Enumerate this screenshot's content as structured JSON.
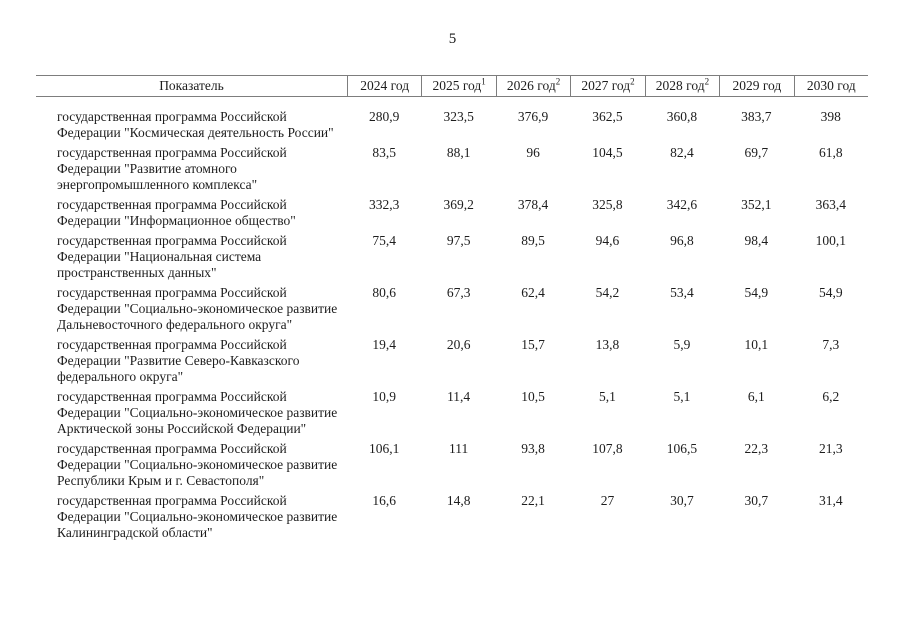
{
  "page": {
    "number": "5"
  },
  "table": {
    "columns": [
      {
        "label": "Показатель"
      },
      {
        "label": "2024 год"
      },
      {
        "label": "2025 год",
        "sup": "1"
      },
      {
        "label": "2026 год",
        "sup": "2"
      },
      {
        "label": "2027 год",
        "sup": "2"
      },
      {
        "label": "2028 год",
        "sup": "2"
      },
      {
        "label": "2029 год"
      },
      {
        "label": "2030 год"
      }
    ],
    "rows": [
      {
        "name": "государственная программа Российской Федерации \"Космическая деятельность России\"",
        "values": [
          "280,9",
          "323,5",
          "376,9",
          "362,5",
          "360,8",
          "383,7",
          "398"
        ]
      },
      {
        "name": "государственная программа Российской Федерации \"Развитие атомного энергопромышленного комплекса\"",
        "values": [
          "83,5",
          "88,1",
          "96",
          "104,5",
          "82,4",
          "69,7",
          "61,8"
        ]
      },
      {
        "name": "государственная программа Российской Федерации \"Информационное общество\"",
        "values": [
          "332,3",
          "369,2",
          "378,4",
          "325,8",
          "342,6",
          "352,1",
          "363,4"
        ]
      },
      {
        "name": "государственная программа Российской Федерации \"Национальная система пространственных данных\"",
        "values": [
          "75,4",
          "97,5",
          "89,5",
          "94,6",
          "96,8",
          "98,4",
          "100,1"
        ]
      },
      {
        "name": "государственная программа Российской Федерации \"Социально-экономическое развитие Дальневосточного федерального округа\"",
        "values": [
          "80,6",
          "67,3",
          "62,4",
          "54,2",
          "53,4",
          "54,9",
          "54,9"
        ]
      },
      {
        "name": "государственная программа Российской Федерации \"Развитие Северо-Кавказского федерального округа\"",
        "values": [
          "19,4",
          "20,6",
          "15,7",
          "13,8",
          "5,9",
          "10,1",
          "7,3"
        ]
      },
      {
        "name": "государственная программа Российской Федерации \"Социально-экономическое развитие Арктической зоны Российской Федерации\"",
        "values": [
          "10,9",
          "11,4",
          "10,5",
          "5,1",
          "5,1",
          "6,1",
          "6,2"
        ]
      },
      {
        "name": "государственная программа Российской Федерации \"Социально-экономическое развитие Республики Крым и г. Севастополя\"",
        "values": [
          "106,1",
          "111",
          "93,8",
          "107,8",
          "106,5",
          "22,3",
          "21,3"
        ]
      },
      {
        "name": "государственная программа Российской Федерации \"Социально-экономическое развитие Калининградской области\"",
        "values": [
          "16,6",
          "14,8",
          "22,1",
          "27",
          "30,7",
          "30,7",
          "31,4"
        ]
      }
    ]
  }
}
